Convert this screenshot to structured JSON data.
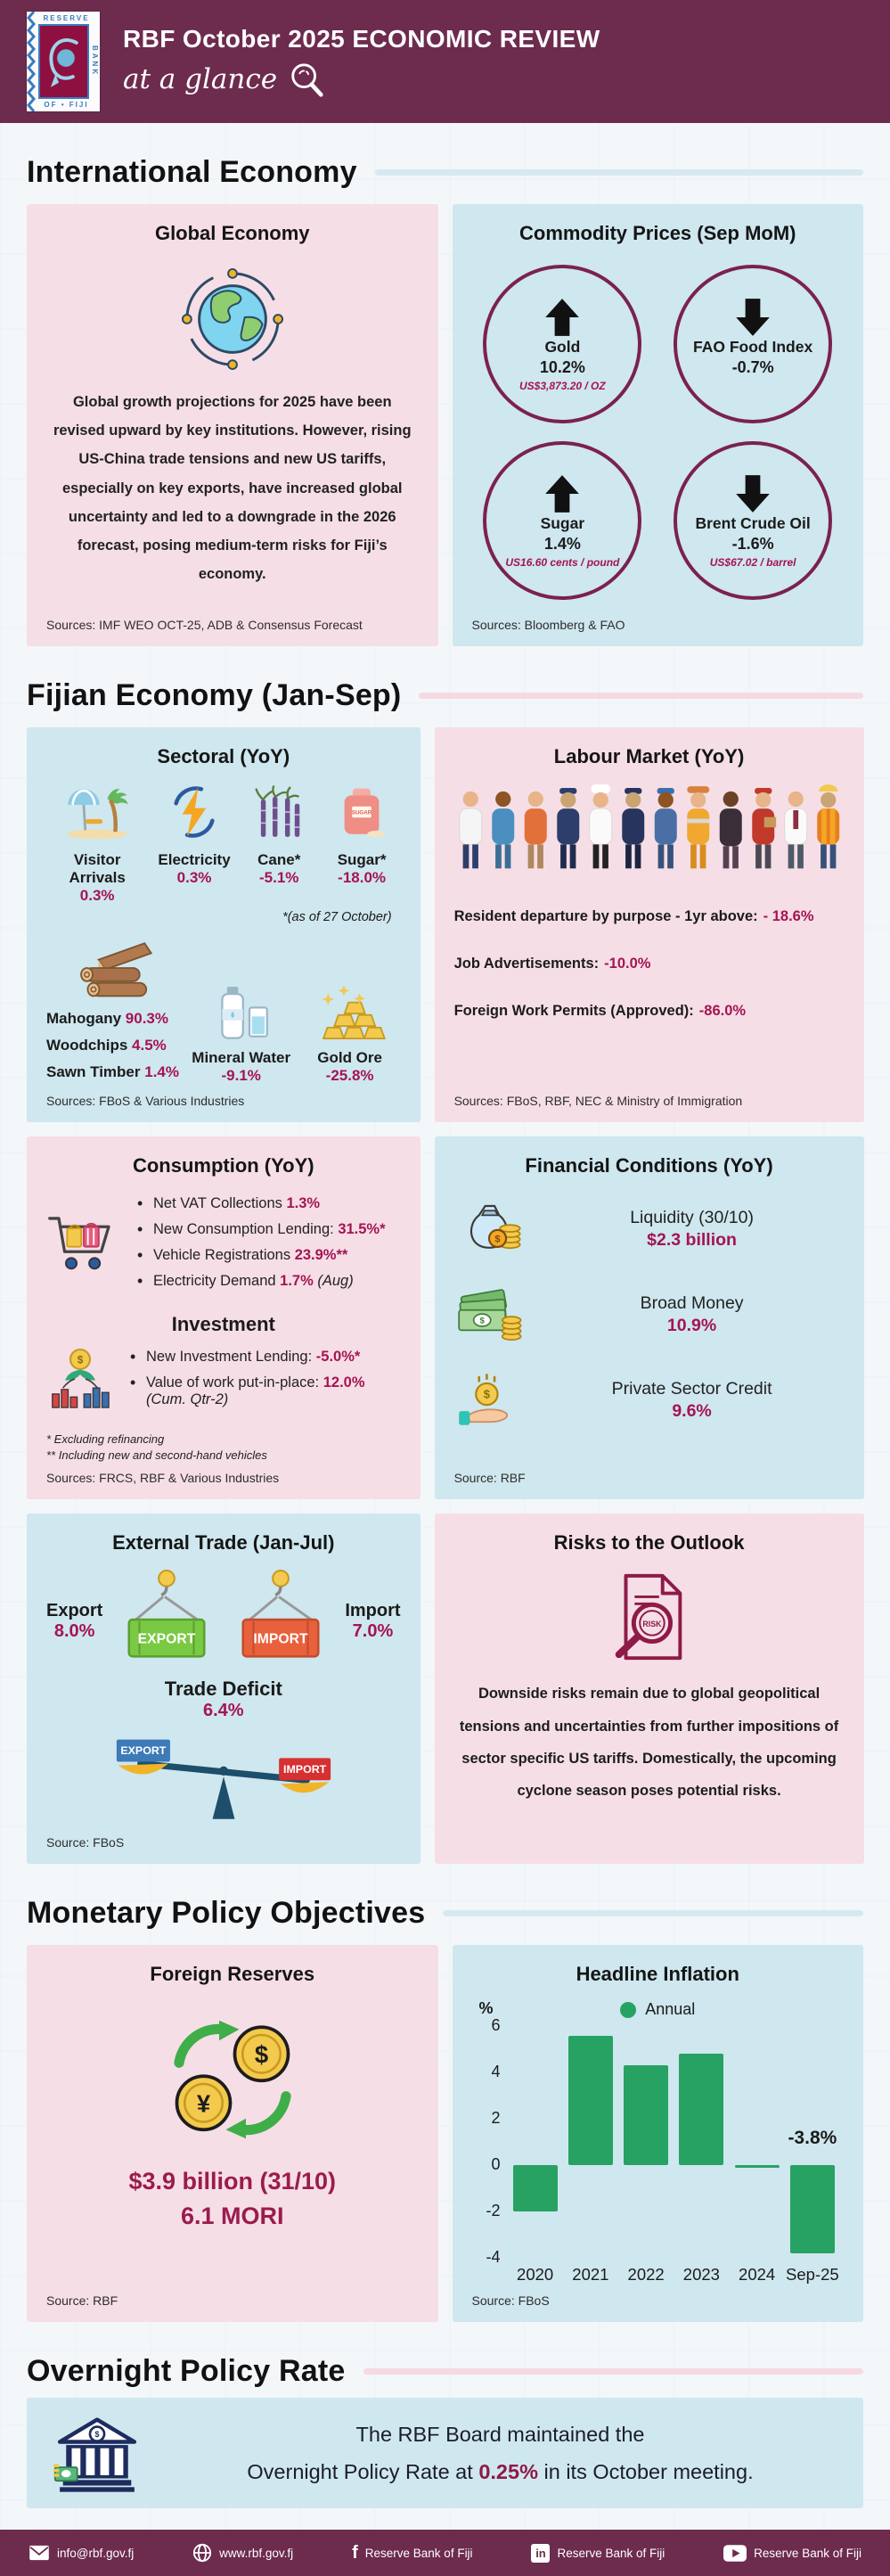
{
  "colors": {
    "maroon": "#6d2b4e",
    "crimson": "#a41453",
    "dark_red": "#9b1b4d",
    "pink_card": "#f6dee6",
    "blue_card": "#cfe7ee",
    "green": "#27a263"
  },
  "glyphs": {
    "dollar": "$",
    "yen": "¥"
  },
  "header": {
    "title": "RBF October 2025 ECONOMIC REVIEW",
    "subtitle": "at a glance",
    "logo": {
      "top": "RESERVE",
      "side": "BANK",
      "bottom": "OF • FIJI"
    }
  },
  "intl": {
    "heading": "International Economy",
    "global": {
      "title": "Global Economy",
      "body": "Global growth projections for 2025 have been revised upward by key institutions. However, rising US-China trade tensions and new US tariffs, especially on key exports, have increased global uncertainty and led to a downgrade in the 2026 forecast, posing medium-term risks for Fiji’s economy.",
      "sources": "Sources:  IMF WEO OCT-25, ADB & Consensus Forecast"
    },
    "commodity": {
      "title": "Commodity Prices (Sep MoM)",
      "items": [
        {
          "name": "Gold",
          "value": "10.2%",
          "sub": "US$3,873.20 / OZ",
          "direction": "up"
        },
        {
          "name": "FAO Food Index",
          "value": "-0.7%",
          "sub": "",
          "direction": "down"
        },
        {
          "name": "Sugar",
          "value": "1.4%",
          "sub": "US16.60 cents / pound",
          "direction": "up"
        },
        {
          "name": "Brent Crude Oil",
          "value": "-1.6%",
          "sub": "US$67.02 / barrel",
          "direction": "down"
        }
      ],
      "sources": "Sources: Bloomberg & FAO"
    }
  },
  "fijian": {
    "heading": "Fijian Economy (Jan-Sep)",
    "sectoral": {
      "title": "Sectoral (YoY)",
      "top": [
        {
          "label": "Visitor Arrivals",
          "value": "0.3%"
        },
        {
          "label": "Electricity",
          "value": "0.3%"
        },
        {
          "label": "Cane*",
          "value": "-5.1%"
        },
        {
          "label": "Sugar*",
          "value": "-18.0%"
        }
      ],
      "footnote": "*(as of 27 October)",
      "sugar_bag_label": "SUGAR",
      "timber": [
        {
          "label": "Mahogany",
          "value": "90.3%"
        },
        {
          "label": "Woodchips",
          "value": "4.5%"
        },
        {
          "label": "Sawn Timber",
          "value": "1.4%"
        }
      ],
      "water": {
        "label": "Mineral Water",
        "value": "-9.1%"
      },
      "gold": {
        "label": "Gold Ore",
        "value": "-25.8%"
      },
      "sources": "Sources: FBoS &  Various Industries"
    },
    "labour": {
      "title": "Labour Market (YoY)",
      "rows": [
        {
          "label": "Resident departure by purpose - 1yr above:",
          "value": "- 18.6%"
        },
        {
          "label": "Job Advertisements:",
          "value": "-10.0%"
        },
        {
          "label": "Foreign Work Permits (Approved):",
          "value": "-86.0%"
        }
      ],
      "sources": "Sources: FBoS, RBF, NEC & Ministry of Immigration"
    },
    "consumption": {
      "title": "Consumption (YoY)",
      "bullets": [
        {
          "label": "Net VAT Collections",
          "value": "1.3%",
          "note": ""
        },
        {
          "label": "New Consumption Lending:",
          "value": "31.5%*",
          "note": ""
        },
        {
          "label": "Vehicle Registrations",
          "value": "23.9%**",
          "note": ""
        },
        {
          "label": "Electricity Demand",
          "value": "1.7%",
          "note": "(Aug)"
        }
      ],
      "investment_title": "Investment",
      "inv_bullets": [
        {
          "label": "New Investment Lending:",
          "value": "-5.0%*",
          "note": ""
        },
        {
          "label": "Value of work put-in-place:",
          "value": "12.0%",
          "note": "(Cum. Qtr-2)"
        }
      ],
      "footnote1": "* Excluding refinancing",
      "footnote2": "** Including new and second-hand vehicles",
      "sources": "Sources: FRCS, RBF & Various Industries"
    },
    "financial": {
      "title": "Financial Conditions (YoY)",
      "rows": [
        {
          "label": "Liquidity (30/10)",
          "value": "$2.3 billion"
        },
        {
          "label": "Broad Money",
          "value": "10.9%"
        },
        {
          "label": "Private Sector Credit",
          "value": "9.6%"
        }
      ],
      "source": "Source: RBF"
    },
    "trade": {
      "title": "External Trade (Jan-Jul)",
      "export_label": "Export",
      "export_value": "8.0%",
      "import_label": "Import",
      "import_value": "7.0%",
      "deficit_label": "Trade Deficit",
      "deficit_value": "6.4%",
      "export_box": "EXPORT",
      "import_box": "IMPORT",
      "source": "Source: FBoS"
    },
    "risks": {
      "title": "Risks to the Outlook",
      "risk_label": "RISK",
      "body": "Downside risks remain due to global geopolitical tensions and uncertainties from further impositions of  sector specific  US tariffs. Domestically, the upcoming cyclone season poses potential risks."
    }
  },
  "monetary": {
    "heading": "Monetary Policy Objectives",
    "reserves": {
      "title": "Foreign Reserves",
      "value": "$3.9 billion (31/10)",
      "value2": "6.1 MORI",
      "source": "Source: RBF"
    },
    "inflation_source": "Source: FBoS"
  },
  "chart_data": {
    "type": "bar",
    "title": "Headline Inflation",
    "categories": [
      "2020",
      "2021",
      "2022",
      "2023",
      "2024",
      "Sep-25"
    ],
    "values": [
      -2.0,
      5.6,
      4.3,
      4.8,
      -0.1,
      -3.8
    ],
    "ylabel": "%",
    "yticks": [
      6,
      4,
      2,
      0,
      -2,
      -4
    ],
    "ylim": [
      -4,
      6
    ],
    "grid": false,
    "bar_color": "#27a263",
    "legend": [
      {
        "label": "Annual",
        "color": "#27a263"
      }
    ],
    "legend_position": "top",
    "annotation": {
      "text": "-3.8%",
      "index": 5
    }
  },
  "opr": {
    "heading": "Overnight Policy Rate",
    "line1": "The RBF Board maintained the",
    "line2_pre": "Overnight Policy Rate at ",
    "rate": "0.25%",
    "line2_post": " in its October meeting."
  },
  "footer": {
    "email": "info@rbf.gov.fj",
    "website": "www.rbf.gov.fj",
    "facebook": "Reserve Bank of Fiji",
    "linkedin": "Reserve Bank of Fiji",
    "youtube": "Reserve Bank of Fiji",
    "facebook_glyph": "f",
    "linkedin_glyph": "in"
  }
}
